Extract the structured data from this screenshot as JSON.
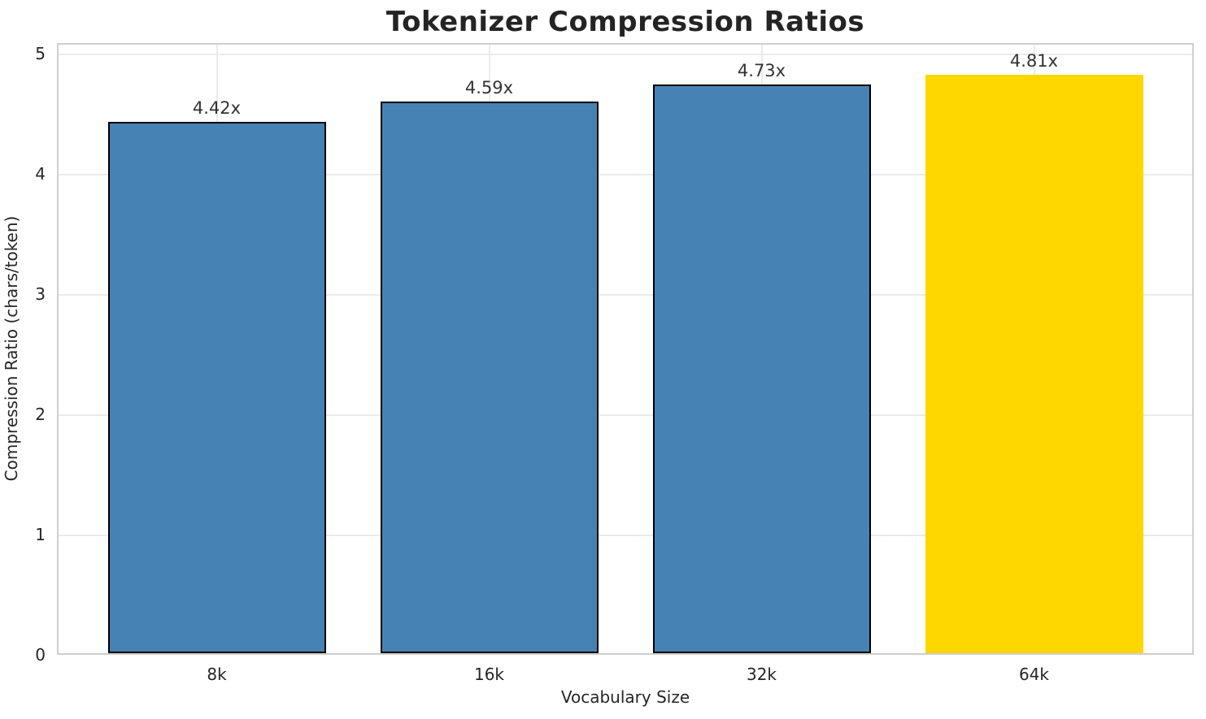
{
  "chart_data": {
    "type": "bar",
    "title": "Tokenizer Compression Ratios",
    "xlabel": "Vocabulary Size",
    "ylabel": "Compression Ratio (chars/token)",
    "categories": [
      "8k",
      "16k",
      "32k",
      "64k"
    ],
    "values": [
      4.42,
      4.59,
      4.73,
      4.81
    ],
    "bar_labels": [
      "4.42x",
      "4.59x",
      "4.73x",
      "4.81x"
    ],
    "yticks": [
      0,
      1,
      2,
      3,
      4,
      5
    ],
    "ylim": [
      0,
      5.09
    ],
    "grid": true,
    "legend": "none",
    "bar_colors": [
      "#4682B4",
      "#4682B4",
      "#4682B4",
      "#FFD700"
    ],
    "bar_edge_colors": [
      "#000000",
      "#000000",
      "#000000",
      "none"
    ],
    "highlight_index": 3
  },
  "colors": {
    "background": "#ffffff",
    "grid": "#ebebeb",
    "spine": "#cfcfcf",
    "title_text": "#242424",
    "tick_text": "#262626",
    "value_label_text": "#333333"
  }
}
